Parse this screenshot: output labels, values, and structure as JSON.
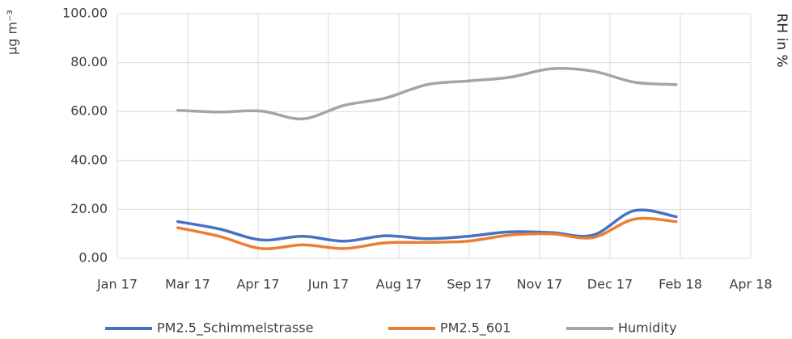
{
  "chart_data": {
    "type": "line",
    "y_label": "µg m⁻³",
    "y2_label": "RH in %",
    "x": [
      1.29,
      2.17,
      3.07,
      3.95,
      4.83,
      5.71,
      6.6,
      7.48,
      8.36,
      9.26,
      10.14,
      11.02,
      11.91
    ],
    "series": [
      {
        "name": "PM2.5_Schimmelstrasse",
        "color": "#4472c4",
        "values": [
          15,
          12,
          7.5,
          9,
          7,
          9.2,
          8,
          9,
          10.8,
          10.5,
          9.5,
          19.5,
          17
        ]
      },
      {
        "name": "PM2.5_601",
        "color": "#ed7d31",
        "values": [
          12.5,
          9,
          4,
          5.5,
          4,
          6.3,
          6.5,
          7,
          9.5,
          10,
          8.5,
          16,
          15
        ]
      },
      {
        "name": "Humidity",
        "color": "#a5a5a5",
        "values": [
          60.5,
          59.8,
          60.2,
          57,
          62.5,
          65.5,
          71,
          72.5,
          74,
          77.5,
          76.5,
          72,
          71
        ]
      }
    ],
    "xlim": [
      0,
      13.5
    ],
    "xticks": [
      {
        "value": 0,
        "label": "Jan 17"
      },
      {
        "value": 1.5,
        "label": "Mar 17"
      },
      {
        "value": 3,
        "label": "Apr 17"
      },
      {
        "value": 4.5,
        "label": "Jun 17"
      },
      {
        "value": 6,
        "label": "Aug 17"
      },
      {
        "value": 7.5,
        "label": "Sep 17"
      },
      {
        "value": 9,
        "label": "Nov 17"
      },
      {
        "value": 10.5,
        "label": "Dec 17"
      },
      {
        "value": 12,
        "label": "Feb 18"
      },
      {
        "value": 13.5,
        "label": "Apr 18"
      }
    ],
    "ylim": [
      0,
      100
    ],
    "yticks": [
      {
        "value": 0,
        "label": "0.00"
      },
      {
        "value": 20,
        "label": "20.00"
      },
      {
        "value": 40,
        "label": "40.00"
      },
      {
        "value": 60,
        "label": "60.00"
      },
      {
        "value": 80,
        "label": "80.00"
      },
      {
        "value": 100,
        "label": "100.00"
      }
    ],
    "grid": true,
    "smooth": true,
    "legend": "bottom"
  }
}
